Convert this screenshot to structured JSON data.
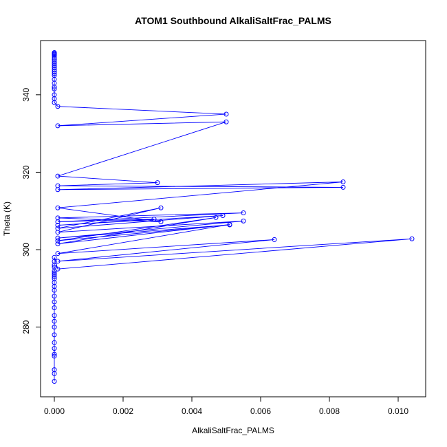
{
  "chart_data": {
    "type": "line",
    "title": "ATOM1 Southbound AlkaliSaltFrac_PALMS",
    "xlabel": "AlkaliSaltFrac_PALMS",
    "ylabel": "Theta (K)",
    "xlim": [
      -0.0004,
      0.0108
    ],
    "ylim": [
      262,
      354
    ],
    "x_ticks": [
      0.0,
      0.002,
      0.004,
      0.006,
      0.008,
      0.01
    ],
    "x_tick_labels": [
      "0.000",
      "0.002",
      "0.004",
      "0.006",
      "0.008",
      "0.010"
    ],
    "y_ticks": [
      280,
      300,
      320,
      340
    ],
    "y_tick_labels": [
      "280",
      "300",
      "320",
      "340"
    ],
    "grid": false,
    "legend": "none",
    "series": [
      {
        "color": "#0000ff",
        "marker": "open-circle",
        "x": [
          0.0,
          0.0,
          0.0,
          0.0,
          0.0,
          0.0,
          0.0,
          0.0,
          0.0,
          0.0,
          0.0,
          0.0,
          0.0,
          0.0,
          0.0,
          0.0,
          0.0,
          0.0,
          0.0,
          0.0,
          0.0,
          0.0,
          0.0,
          0.0,
          0.0,
          0.0,
          0.0001,
          0.0104,
          0.0001,
          0.0064,
          0.0001,
          0.0051,
          0.0001,
          0.0047,
          0.0001,
          0.0051,
          0.0001,
          0.0055,
          0.0001,
          0.0031,
          0.0001,
          0.0049,
          0.0001,
          0.0029,
          0.0001,
          0.0055,
          0.0001,
          0.0031,
          0.0001,
          0.0084,
          0.0001,
          0.0084,
          0.0001,
          0.003,
          0.0001,
          0.005,
          0.0001,
          0.005,
          0.0001,
          0.0,
          0.0,
          0.0,
          0.0,
          0.0,
          0.0,
          0.0,
          0.0,
          0.0,
          0.0,
          0.0,
          0.0,
          0.0,
          0.0,
          0.0,
          0.0,
          0.0,
          0.0,
          0.0,
          0.0,
          0.0,
          0.0
        ],
        "y": [
          266.0,
          268.0,
          269.0,
          272.5,
          273.0,
          274.5,
          276.0,
          278.0,
          280.0,
          281.5,
          283.0,
          285.0,
          286.5,
          288.0,
          289.5,
          290.5,
          291.5,
          292.5,
          293.0,
          293.5,
          294.0,
          294.5,
          295.5,
          296.0,
          297.0,
          298.0,
          295.0,
          302.8,
          297.0,
          302.6,
          299.0,
          306.5,
          301.5,
          308.3,
          302.3,
          306.4,
          303.0,
          307.4,
          304.5,
          310.8,
          305.5,
          308.8,
          306.3,
          307.9,
          307.2,
          309.5,
          308.2,
          307.2,
          310.8,
          317.5,
          315.5,
          316.1,
          316.5,
          317.3,
          319.0,
          333.0,
          332.0,
          335.0,
          337.0,
          338.0,
          339.0,
          340.0,
          341.5,
          342.0,
          343.0,
          344.0,
          345.0,
          345.5,
          346.0,
          346.5,
          347.0,
          347.5,
          348.0,
          348.5,
          349.0,
          349.5,
          350.0,
          350.3,
          350.5,
          350.7,
          350.9
        ]
      }
    ]
  }
}
